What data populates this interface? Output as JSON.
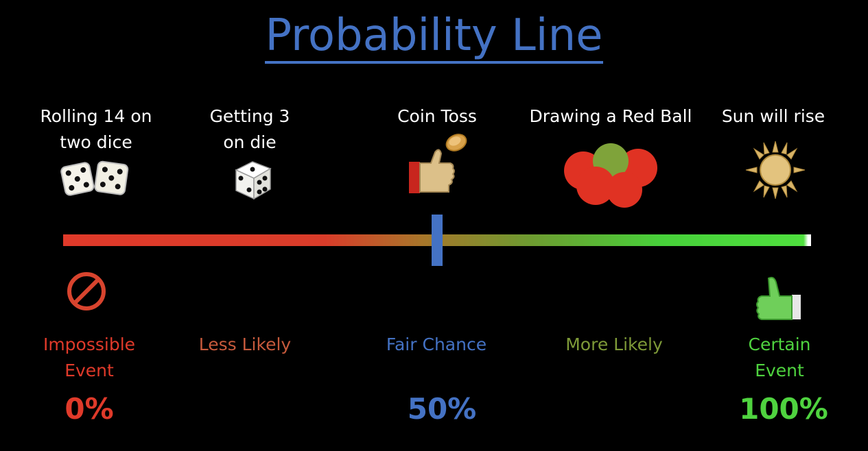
{
  "title": "Probability Line",
  "events": [
    {
      "line1": "Rolling 14 on",
      "line2": "two dice",
      "icon": "two-dice-icon"
    },
    {
      "line1": "Getting 3",
      "line2": "on die",
      "icon": "die-icon"
    },
    {
      "line1": "Coin Toss",
      "line2": "",
      "icon": "coin-toss-thumb-icon"
    },
    {
      "line1": "Drawing a Red Ball",
      "line2": "",
      "icon": "balls-icon"
    },
    {
      "line1": "Sun will rise",
      "line2": "",
      "icon": "sun-icon"
    }
  ],
  "labels": [
    {
      "line1": "Impossible",
      "line2": "Event",
      "color": "#e03a2a"
    },
    {
      "line1": "Less Likely",
      "line2": "",
      "color": "#c75a3c"
    },
    {
      "line1": "Fair Chance",
      "line2": "",
      "color": "#4472c4"
    },
    {
      "line1": "More Likely",
      "line2": "",
      "color": "#7e9a38"
    },
    {
      "line1": "Certain",
      "line2": "Event",
      "color": "#4fd33f"
    }
  ],
  "percentages": [
    {
      "value": "0%",
      "color": "#e03a2a"
    },
    {
      "value": "50%",
      "color": "#4472c4"
    },
    {
      "value": "100%",
      "color": "#4fd33f"
    }
  ],
  "bottom_icons": [
    "prohibited-icon",
    "thumbs-up-icon"
  ]
}
